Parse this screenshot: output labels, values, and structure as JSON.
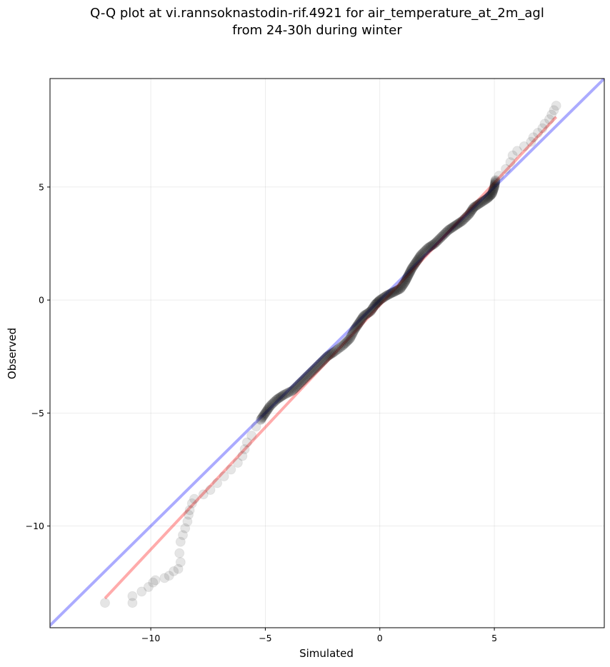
{
  "chart_data": {
    "type": "scatter",
    "title_line1": "Q-Q plot at vi.rannsoknastodin-rif.4921 for air_temperature_at_2m_agl",
    "title_line2": "from 24-30h during winter",
    "xlabel": "Simulated",
    "ylabel": "Observed",
    "xlim": [
      -14.4,
      9.8
    ],
    "ylim": [
      -14.5,
      9.8
    ],
    "x_ticks": [
      -10,
      -5,
      0,
      5
    ],
    "y_ticks": [
      -10,
      -5,
      0,
      5
    ],
    "x_tick_labels": [
      "−10",
      "−5",
      "0",
      "5"
    ],
    "y_tick_labels": [
      "−10",
      "−5",
      "0",
      "5"
    ],
    "grid": true,
    "reference_line": {
      "description": "y = x",
      "color": "#0000ff",
      "alpha": 0.33
    },
    "fit_line": {
      "points": [
        [
          -12.0,
          -13.2
        ],
        [
          7.7,
          8.1
        ]
      ],
      "color": "#ff0000",
      "alpha": 0.33
    },
    "marker_color": "#000000",
    "series": [
      {
        "points": [
          [
            -12.0,
            -13.4
          ],
          [
            -10.8,
            -13.4
          ],
          [
            -10.8,
            -13.1
          ],
          [
            -10.4,
            -12.9
          ],
          [
            -10.1,
            -12.7
          ],
          [
            -9.9,
            -12.5
          ],
          [
            -9.8,
            -12.4
          ],
          [
            -9.4,
            -12.3
          ],
          [
            -9.2,
            -12.2
          ],
          [
            -9.0,
            -12.0
          ],
          [
            -8.8,
            -11.9
          ],
          [
            -8.7,
            -11.6
          ],
          [
            -8.75,
            -11.2
          ],
          [
            -8.7,
            -10.7
          ],
          [
            -8.6,
            -10.4
          ],
          [
            -8.5,
            -10.1
          ],
          [
            -8.4,
            -9.8
          ],
          [
            -8.35,
            -9.5
          ],
          [
            -8.3,
            -9.3
          ],
          [
            -8.2,
            -9.0
          ],
          [
            -8.1,
            -8.8
          ],
          [
            -7.7,
            -8.6
          ],
          [
            -7.4,
            -8.4
          ],
          [
            -7.1,
            -8.1
          ],
          [
            -6.8,
            -7.8
          ],
          [
            -6.5,
            -7.5
          ],
          [
            -6.2,
            -7.2
          ],
          [
            -6.0,
            -6.9
          ],
          [
            -5.9,
            -6.6
          ],
          [
            -5.8,
            -6.3
          ],
          [
            -5.6,
            -6.0
          ],
          [
            -5.4,
            -5.6
          ],
          [
            -5.2,
            -5.3
          ],
          [
            -5.0,
            -5.0
          ],
          [
            -4.8,
            -4.7
          ],
          [
            -4.5,
            -4.4
          ],
          [
            -4.2,
            -4.2
          ],
          [
            -3.8,
            -4.0
          ],
          [
            -3.5,
            -3.7
          ],
          [
            -3.2,
            -3.4
          ],
          [
            -2.9,
            -3.1
          ],
          [
            -2.6,
            -2.8
          ],
          [
            -2.3,
            -2.5
          ],
          [
            -2.0,
            -2.3
          ],
          [
            -1.6,
            -2.0
          ],
          [
            -1.3,
            -1.7
          ],
          [
            -1.1,
            -1.3
          ],
          [
            -0.9,
            -1.0
          ],
          [
            -0.7,
            -0.7
          ],
          [
            -0.4,
            -0.5
          ],
          [
            -0.2,
            -0.2
          ],
          [
            0.0,
            0.0
          ],
          [
            0.3,
            0.2
          ],
          [
            0.6,
            0.35
          ],
          [
            0.9,
            0.5
          ],
          [
            1.1,
            0.8
          ],
          [
            1.25,
            1.1
          ],
          [
            1.4,
            1.4
          ],
          [
            1.6,
            1.7
          ],
          [
            1.8,
            2.0
          ],
          [
            2.1,
            2.3
          ],
          [
            2.4,
            2.5
          ],
          [
            2.7,
            2.8
          ],
          [
            3.0,
            3.1
          ],
          [
            3.3,
            3.3
          ],
          [
            3.6,
            3.5
          ],
          [
            3.9,
            3.8
          ],
          [
            4.1,
            4.1
          ],
          [
            4.4,
            4.3
          ],
          [
            4.7,
            4.5
          ],
          [
            4.9,
            4.7
          ],
          [
            5.0,
            5.0
          ],
          [
            5.05,
            5.3
          ],
          [
            5.2,
            5.5
          ],
          [
            5.5,
            5.8
          ],
          [
            5.7,
            6.1
          ],
          [
            5.8,
            6.4
          ],
          [
            6.0,
            6.6
          ],
          [
            6.3,
            6.8
          ],
          [
            6.6,
            7.0
          ],
          [
            6.7,
            7.2
          ],
          [
            6.9,
            7.4
          ],
          [
            7.1,
            7.6
          ],
          [
            7.2,
            7.8
          ],
          [
            7.4,
            8.0
          ],
          [
            7.5,
            8.2
          ],
          [
            7.6,
            8.4
          ],
          [
            7.7,
            8.6
          ]
        ]
      }
    ]
  }
}
